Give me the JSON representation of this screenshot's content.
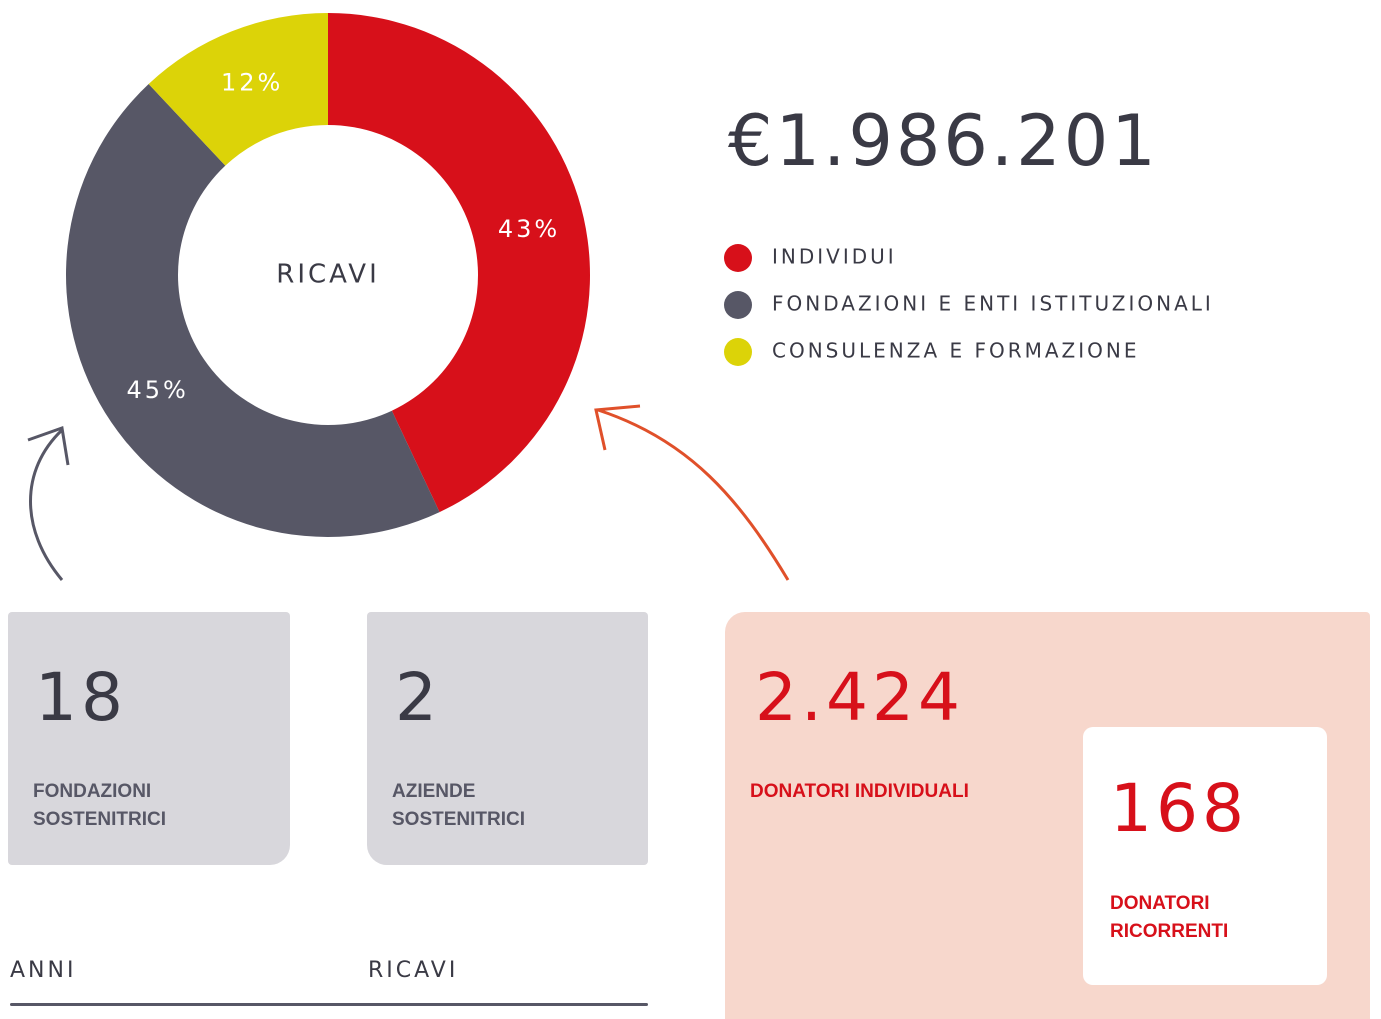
{
  "chart_data": {
    "type": "pie",
    "center_label": "RICAVI",
    "total_label": "€1.986.201",
    "categories": [
      "INDIVIDUI",
      "FONDAZIONI E ENTI ISTITUZIONALI",
      "CONSULENZA E FORMAZIONE"
    ],
    "values": [
      43,
      45,
      12
    ],
    "value_labels": [
      "43%",
      "45%",
      "12%"
    ],
    "colors": [
      "#d7101a",
      "#575766",
      "#dcd308"
    ]
  },
  "cards": [
    {
      "value": "18",
      "label": "FONDAZIONI SOSTENITRICI"
    },
    {
      "value": "2",
      "label": "AZIENDE SOSTENITRICI"
    }
  ],
  "donors": {
    "value": "2.424",
    "label": "DONATORI INDIVIDUALI",
    "recurring": {
      "value": "168",
      "label": "DONATORI RICORRENTI"
    }
  },
  "footer": {
    "left": "ANNI",
    "right": "RICAVI"
  }
}
